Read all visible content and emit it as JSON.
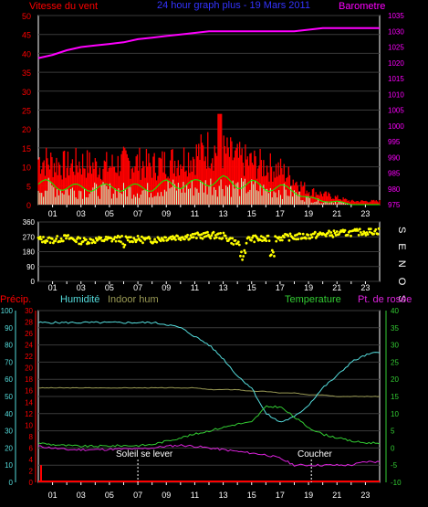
{
  "colors": {
    "bg": "#000000",
    "frame": "#ffffff",
    "grid": "#3a3a3a",
    "wind": "#ff0000",
    "wind_avg": "#00ff00",
    "wind_low": "#c8ffc8",
    "baro": "#ff00ff",
    "dir": "#ffff00",
    "rain": "#ff0000",
    "humidity": "#55dddd",
    "indoor_hum": "#9a9a55",
    "temperature": "#33cc33",
    "dewpoint": "#dd22dd",
    "tick": "#ffffff"
  },
  "header": {
    "title": "24 hour graph plus - 19 Mars 2011"
  },
  "x_ticks": [
    "01",
    "03",
    "05",
    "07",
    "09",
    "11",
    "13",
    "15",
    "17",
    "19",
    "21",
    "23"
  ],
  "chart_data": [
    {
      "type": "area",
      "left_label": "Vitesse du vent",
      "right_label": "Barometre",
      "left_axis": {
        "min": 0,
        "max": 50,
        "ticks": [
          0,
          5,
          10,
          15,
          20,
          25,
          30,
          35,
          40,
          45,
          50
        ]
      },
      "right_axis": {
        "min": 975,
        "max": 1035,
        "ticks": [
          975,
          980,
          985,
          990,
          995,
          1000,
          1005,
          1010,
          1015,
          1020,
          1025,
          1030,
          1035
        ]
      },
      "x_hours": [
        0,
        1,
        2,
        3,
        4,
        5,
        6,
        7,
        8,
        9,
        10,
        11,
        12,
        13,
        14,
        15,
        16,
        17,
        18,
        19,
        20,
        21,
        22,
        23,
        24
      ],
      "series": [
        {
          "name": "Barometre",
          "axis": "right",
          "values": [
            1021.5,
            1022.5,
            1024,
            1025,
            1025.5,
            1026,
            1026.5,
            1027.5,
            1028,
            1028.5,
            1029,
            1029.5,
            1030,
            1030,
            1030,
            1030,
            1030,
            1030,
            1030,
            1030.5,
            1031,
            1031,
            1031,
            1031,
            1031
          ]
        },
        {
          "name": "Vitesse du vent",
          "axis": "left",
          "values": [
            13,
            12,
            11,
            12,
            11,
            11,
            12,
            12,
            11,
            12,
            13,
            14,
            16,
            15,
            13,
            12,
            11,
            10,
            7,
            4,
            3,
            2,
            1,
            1,
            1
          ]
        },
        {
          "name": "moyenne",
          "axis": "left",
          "values": [
            6,
            6,
            5,
            5,
            5,
            5,
            5,
            5,
            5,
            6,
            6,
            6,
            7,
            7,
            6,
            6,
            5,
            5,
            4,
            2,
            1,
            1,
            0,
            0,
            0
          ]
        }
      ]
    },
    {
      "type": "scatter",
      "right_label": "S E N O S",
      "y_axis": {
        "min": 0,
        "max": 360,
        "ticks": [
          0,
          90,
          180,
          270,
          360
        ]
      },
      "x_hours": [
        0,
        1,
        2,
        3,
        4,
        5,
        6,
        7,
        8,
        9,
        10,
        11,
        12,
        13,
        14,
        15,
        16,
        17,
        18,
        19,
        20,
        21,
        22,
        23,
        24
      ],
      "values": [
        255,
        250,
        265,
        245,
        250,
        255,
        260,
        255,
        250,
        265,
        270,
        275,
        280,
        275,
        230,
        260,
        255,
        265,
        270,
        275,
        285,
        290,
        295,
        300,
        305
      ]
    },
    {
      "type": "line",
      "top_labels": {
        "precip": "Précip.",
        "humidity": "Humidité",
        "indoor": "Indoor hum",
        "temperature": "Temperature",
        "dewpoint": "Pt. de rosée"
      },
      "humidity_axis": {
        "min": 0,
        "max": 100,
        "ticks": [
          0,
          10,
          20,
          30,
          40,
          50,
          60,
          70,
          80,
          90,
          100
        ]
      },
      "precip_axis": {
        "min": 0,
        "max": 30,
        "ticks": [
          0,
          2,
          4,
          6,
          8,
          10,
          12,
          14,
          16,
          18,
          20,
          22,
          24,
          26,
          28,
          30
        ]
      },
      "temp_axis": {
        "min": -10,
        "max": 40,
        "ticks": [
          -10,
          -5,
          0,
          5,
          10,
          15,
          20,
          25,
          30,
          35,
          40
        ]
      },
      "annotations": {
        "sunrise": "Soleil se lever",
        "sunset": "Coucher"
      },
      "sunrise_hour": 7.0,
      "sunset_hour": 19.2,
      "x_hours": [
        0,
        1,
        2,
        3,
        4,
        5,
        6,
        7,
        8,
        9,
        10,
        11,
        12,
        13,
        14,
        15,
        16,
        17,
        18,
        19,
        20,
        21,
        22,
        23,
        24
      ],
      "series": [
        {
          "name": "Humidité",
          "axis": "humidity",
          "values": [
            93,
            93,
            93,
            93,
            93,
            93,
            93,
            93,
            93,
            92,
            90,
            85,
            80,
            72,
            62,
            55,
            40,
            35,
            38,
            45,
            55,
            62,
            70,
            74,
            76
          ]
        },
        {
          "name": "Indoor hum",
          "axis": "humidity",
          "values": [
            55,
            55,
            55,
            55,
            55,
            55,
            55,
            55,
            55,
            55,
            55,
            55,
            54,
            54,
            54,
            53,
            53,
            52,
            52,
            51,
            51,
            50,
            50,
            50,
            50
          ]
        },
        {
          "name": "Temperature",
          "axis": "temp",
          "values": [
            1.5,
            1.0,
            0.7,
            0.5,
            0.5,
            0.6,
            0.7,
            0.7,
            1.0,
            2.0,
            3.0,
            4.0,
            5.0,
            6.0,
            7.0,
            7.5,
            12,
            12,
            9,
            6,
            4,
            3,
            2,
            1.5,
            1.5
          ]
        },
        {
          "name": "Pt. de rosée",
          "axis": "temp",
          "values": [
            0.5,
            0,
            -0.5,
            -0.5,
            -0.5,
            -0.4,
            -0.3,
            -0.3,
            0,
            0.5,
            0.8,
            0.5,
            0,
            -0.5,
            -1,
            -1.5,
            -2,
            -3,
            -5,
            -5,
            -5,
            -5,
            -5,
            -4,
            -4
          ]
        },
        {
          "name": "Précip.",
          "axis": "precip",
          "values": [
            0,
            0,
            0,
            0,
            0,
            0,
            0,
            0,
            0,
            0,
            0,
            0,
            0,
            0,
            0,
            0,
            0,
            0,
            0,
            0,
            0,
            0,
            0,
            0,
            0
          ]
        }
      ]
    }
  ]
}
